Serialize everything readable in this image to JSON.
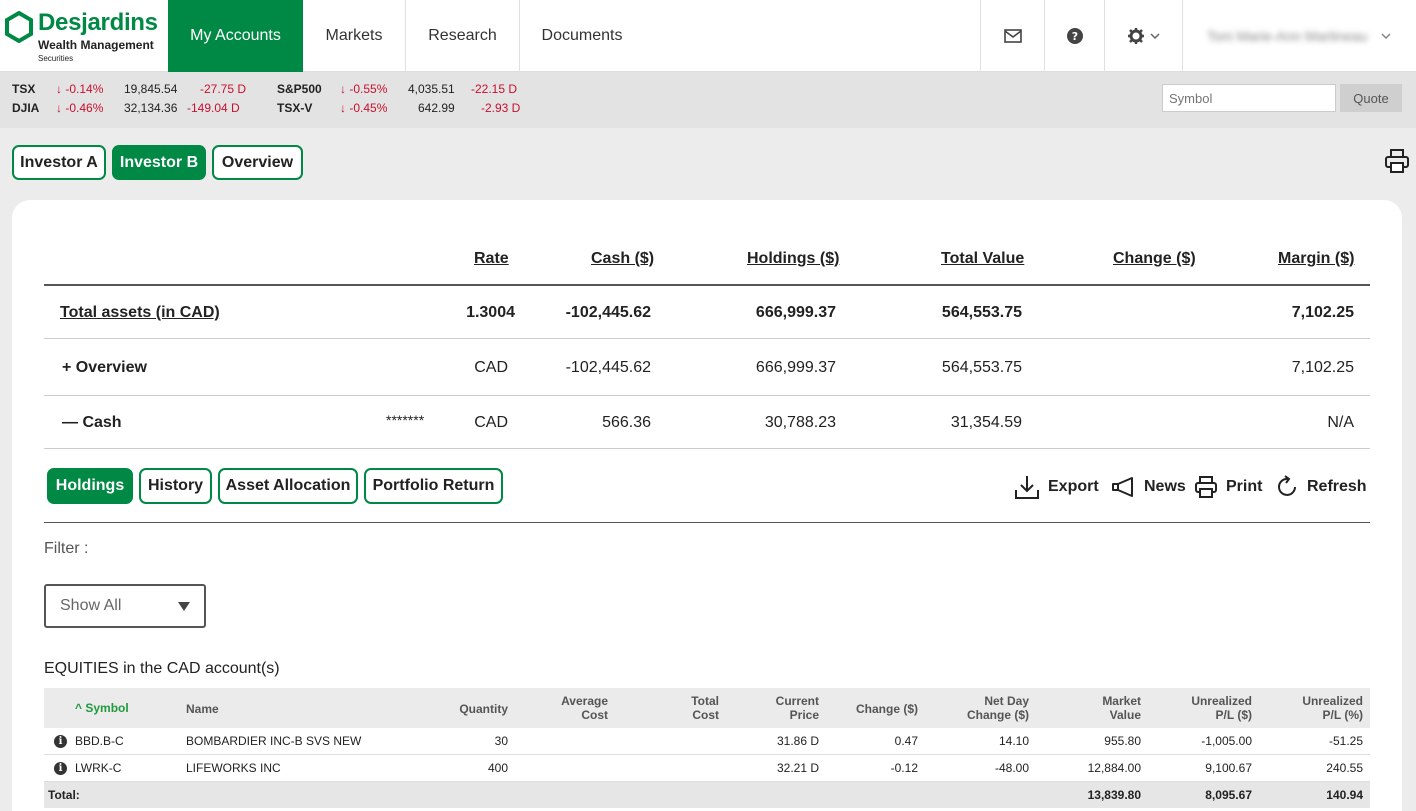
{
  "brand": {
    "name": "Desjardins",
    "line1": "Wealth Management",
    "line2": "Securities",
    "color": "#008845"
  },
  "nav": {
    "tabs": [
      {
        "label": "My Accounts",
        "active": true
      },
      {
        "label": "Markets"
      },
      {
        "label": "Research"
      },
      {
        "label": "Documents"
      }
    ],
    "icons": [
      "mail-icon",
      "help-icon",
      "gear-icon"
    ],
    "user_name": "Toni Marie-Ann Martineau"
  },
  "ticker": [
    {
      "sym": "TSX",
      "chg_pct": "-0.14%",
      "value": "19,845.54",
      "chg": "-27.75 D"
    },
    {
      "sym": "DJIA",
      "chg_pct": "-0.46%",
      "value": "32,134.36",
      "chg": "-149.04 D"
    },
    {
      "sym": "S&P500",
      "chg_pct": "-0.55%",
      "value": "4,035.51",
      "chg": "-22.15 D"
    },
    {
      "sym": "TSX-V",
      "chg_pct": "-0.45%",
      "value": "642.99",
      "chg": "-2.93 D"
    }
  ],
  "quote": {
    "placeholder": "Symbol",
    "button": "Quote"
  },
  "investors": [
    {
      "label": "Investor A"
    },
    {
      "label": "Investor B",
      "active": true
    },
    {
      "label": "Overview"
    }
  ],
  "summary": {
    "headers": {
      "rate": "Rate",
      "cash": "Cash ($)",
      "holdings": "Holdings ($)",
      "total": "Total Value",
      "change": "Change ($)",
      "margin": "Margin ($)"
    },
    "rows": [
      {
        "label": "Total assets (in CAD)",
        "acct": "",
        "rate": "1.3004",
        "cash": "-102,445.62",
        "holdings": "666,999.37",
        "total": "564,553.75",
        "change": "",
        "margin": "7,102.25"
      },
      {
        "label": "+ Overview",
        "acct": "",
        "rate": "CAD",
        "cash": "-102,445.62",
        "holdings": "666,999.37",
        "total": "564,553.75",
        "change": "",
        "margin": "7,102.25"
      },
      {
        "label": "— Cash",
        "acct": "*******",
        "rate": "CAD",
        "cash": "566.36",
        "holdings": "30,788.23",
        "total": "31,354.59",
        "change": "",
        "margin": "N/A"
      }
    ]
  },
  "subtabs": [
    {
      "label": "Holdings",
      "active": true
    },
    {
      "label": "History"
    },
    {
      "label": "Asset Allocation"
    },
    {
      "label": "Portfolio Return"
    }
  ],
  "actions": {
    "export": "Export",
    "news": "News",
    "print": "Print",
    "refresh": "Refresh"
  },
  "filter": {
    "label": "Filter :",
    "value": "Show All"
  },
  "equities": {
    "title": "EQUITIES in the CAD account(s)",
    "headers": {
      "symbol": "Symbol",
      "name": "Name",
      "qty": "Quantity",
      "avg1": "Average",
      "avg2": "Cost",
      "tot1": "Total",
      "tot2": "Cost",
      "cur1": "Current",
      "cur2": "Price",
      "chg": "Change ($)",
      "nd1": "Net Day",
      "nd2": "Change ($)",
      "mv1": "Market",
      "mv2": "Value",
      "up1": "Unrealized",
      "up2": "P/L ($)",
      "upp1": "Unrealized",
      "upp2": "P/L (%)"
    },
    "rows": [
      {
        "symbol": "BBD.B-C",
        "name": "BOMBARDIER INC-B SVS NEW",
        "qty": "30",
        "avg": "",
        "tot": "",
        "price": "31.86 D",
        "chg": "0.47",
        "netday": "14.10",
        "mv": "955.80",
        "upl": "-1,005.00",
        "uplpct": "-51.25"
      },
      {
        "symbol": "LWRK-C",
        "name": "LIFEWORKS INC",
        "qty": "400",
        "avg": "",
        "tot": "",
        "price": "32.21 D",
        "chg": "-0.12",
        "netday": "-48.00",
        "mv": "12,884.00",
        "upl": "9,100.67",
        "uplpct": "240.55"
      }
    ],
    "total": {
      "label": "Total:",
      "mv": "13,839.80",
      "upl": "8,095.67",
      "uplpct": "140.94"
    }
  }
}
